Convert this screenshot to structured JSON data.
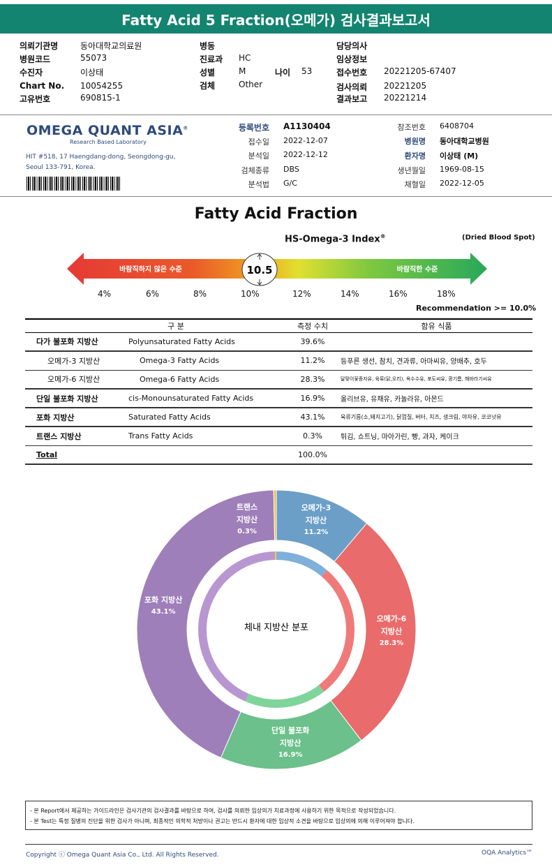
{
  "report_title": "Fatty Acid 5 Fraction(오메가) 검사결과보고서",
  "patient": {
    "institution_label": "의뢰기관명",
    "institution": "동아대학교의료원",
    "hospital_code_label": "병원코드",
    "hospital_code": "55073",
    "recipient_label": "수진자",
    "recipient": "이상태",
    "chart_label": "Chart No.",
    "chart": "10054255",
    "unique_label": "고유번호",
    "unique": "690815-1",
    "ward_label": "병동",
    "ward": "",
    "dept_label": "진료과",
    "dept": "HC",
    "sex_label": "성별",
    "sex": "M",
    "age_label": "나이",
    "age": "53",
    "specimen_label": "검체",
    "specimen": "Other",
    "doctor_label": "담당의사",
    "doctor": "",
    "clinical_label": "임상정보",
    "clinical": "",
    "receipt_no_label": "접수번호",
    "receipt_no": "20221205-67407",
    "request_label": "검사의뢰",
    "request": "20221205",
    "report_label": "결과보고",
    "report": "20221214"
  },
  "lab": {
    "name": "OMEGA QUANT ASIA",
    "name_mark": "®",
    "subtitle": "Research Based Laboratory",
    "address1": "HIT #518, 17 Haengdang-dong, Seongdong-gu,",
    "address2": "Seoul 133-791, Korea."
  },
  "registration": {
    "reg_no_label": "등록번호",
    "reg_no": "A1130404",
    "received_label": "접수일",
    "received": "2022-12-07",
    "analyzed_label": "분석일",
    "analyzed": "2022-12-12",
    "sample_type_label": "검체종류",
    "sample_type": "DBS",
    "method_label": "분석법",
    "method": "G/C",
    "ref_no_label": "참조번호",
    "ref_no": "6408704",
    "hospital_label": "병원명",
    "hospital": "동아대학교병원",
    "patient_label": "환자명",
    "patient": "이상태 (M)",
    "dob_label": "생년월일",
    "dob": "1969-08-15",
    "collected_label": "채혈일",
    "collected": "2022-12-05"
  },
  "fraction_title": "Fatty Acid Fraction",
  "index": {
    "title": "HS-Omega-3 Index",
    "title_mark": "®",
    "sample": "(Dried Blood Spot)",
    "value": "10.5",
    "left_label": "바람직하지 않은 수준",
    "right_label": "바람직한 수준",
    "ticks": [
      "4%",
      "6%",
      "8%",
      "10%",
      "12%",
      "14%",
      "16%",
      "18%"
    ],
    "recommendation": "Recommendation  >= 10.0%",
    "colors": {
      "bad": "#e53935",
      "mid": "#e0e030",
      "good": "#27a85a"
    }
  },
  "table": {
    "headers": [
      "구 분",
      "측정 수치",
      "함유 식품"
    ],
    "rows": [
      {
        "kr": "다가 불포화 지방산",
        "en": "Polyunsaturated Fatty Acids",
        "value": "39.6%",
        "foods": "",
        "main": true
      },
      {
        "kr": "오메가-3 지방산",
        "en": "Omega-3 Fatty Acids",
        "value": "11.2%",
        "foods": "등푸른 생선, 참치, 견과류, 아마씨유, 양배추, 호두",
        "main": false
      },
      {
        "kr": "오메가-6 지방산",
        "en": "Omega-6 Fatty Acids",
        "value": "28.3%",
        "foods": "달맞이꽃종자유, 육류(닭,오리), 옥수수유, 포도씨유, 콩기름, 해바라기씨유",
        "main": false
      },
      {
        "kr": "단일 불포화 지방산",
        "en": "cis-Monounsaturated Fatty Acids",
        "value": "16.9%",
        "foods": "올리브유, 유채유, 카놀라유, 아몬드",
        "main": true
      },
      {
        "kr": "포화 지방산",
        "en": "Saturated Fatty Acids",
        "value": "43.1%",
        "foods": "육류기름(소,돼지고기), 닭껍질, 버터, 치즈, 생크림, 야자유, 코코넛유",
        "main": true
      },
      {
        "kr": "트랜스 지방산",
        "en": "Trans Fatty Acids",
        "value": "0.3%",
        "foods": "튀김, 쇼트닝, 마아가린, 빵, 과자, 케이크",
        "main": true
      }
    ],
    "total_label": "Total",
    "total_value": "100.0%"
  },
  "chart_data": {
    "type": "pie",
    "title": "체내 지방산 분포",
    "categories": [
      "오메가-3 지방산",
      "오메가-6 지방산",
      "단일 불포화 지방산",
      "포화 지방산",
      "트랜스 지방산"
    ],
    "values": [
      11.2,
      28.3,
      16.9,
      43.1,
      0.3
    ],
    "labels": [
      "11.2%",
      "28.3%",
      "16.9%",
      "43.1%",
      "0.3%"
    ],
    "colors": [
      "#6b9fc8",
      "#e96b6b",
      "#6cc08b",
      "#9e7fba",
      "#f0c040"
    ],
    "inner_colors": [
      "#7fb0dc",
      "#f07a7a",
      "#7fd49a",
      "#b897d1",
      "#f2c84c"
    ]
  },
  "notes": [
    "- 본 Report에서 제공하는 가이드라인은 검사기관의 검사결과를 바탕으로 하여, 검사를 의뢰한 임상의가 치료과정에 사용하기 위한 목적으로 작성되었습니다.",
    "- 본 Test는 특정 질병의 진단을 위한 검사가 아니며, 최종적인 의학적 처방이나 권고는 반드시 환자에 대한 임상적 소견을 바탕으로 임상의에 의해 이루어져야 합니다."
  ],
  "footer": {
    "copyright": "Copyright ⓒ Omega Quant Asia Co., Ltd.  All Rights Reserved.",
    "brand": "OQA Analytics™"
  }
}
